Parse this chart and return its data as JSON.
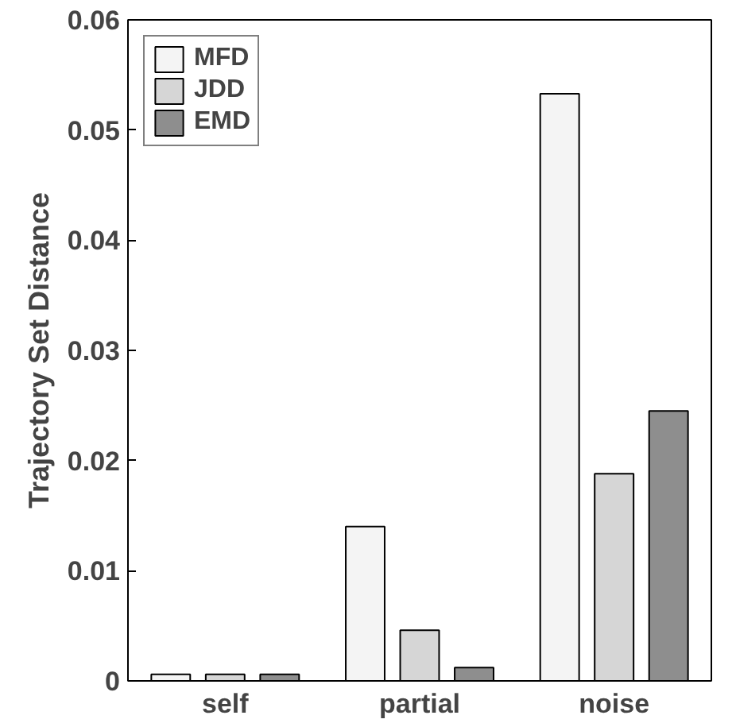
{
  "chart_data": {
    "type": "bar",
    "ylabel": "Trajectory Set Distance",
    "categories": [
      "self",
      "partial",
      "noise"
    ],
    "series": [
      {
        "name": "MFD",
        "color": "#f4f4f4",
        "values": [
          0.0006,
          0.014,
          0.0533
        ]
      },
      {
        "name": "JDD",
        "color": "#d6d6d6",
        "values": [
          0.0006,
          0.0046,
          0.0188
        ]
      },
      {
        "name": "EMD",
        "color": "#8e8e8e",
        "values": [
          0.0006,
          0.0012,
          0.0245
        ]
      }
    ],
    "ylim": [
      0,
      0.06
    ],
    "yticks": [
      {
        "value": 0,
        "label": "0"
      },
      0.01,
      0.02,
      0.03,
      0.04,
      0.05,
      0.06
    ],
    "grid": false,
    "legend": "top left"
  }
}
